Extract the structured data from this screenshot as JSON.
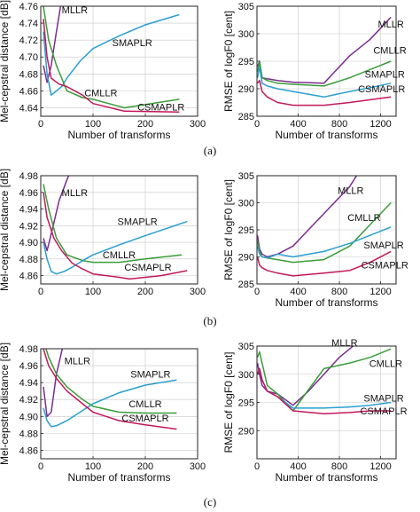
{
  "colors": {
    "MLLR": "#7b2d8e",
    "SMAPLR": "#2a9fd0",
    "CMLLR": "#3a9d3a",
    "CSMAPLR": "#c2185b"
  },
  "captions": [
    "(a)",
    "(b)",
    "(c)"
  ],
  "chart_data": [
    {
      "type": "line",
      "row": 0,
      "xlabel": "Number of transforms",
      "ylabel": "Mel-cepstral distance [dB]",
      "xlim": [
        0,
        300
      ],
      "ylim": [
        4.63,
        4.76
      ],
      "xticks": [
        0,
        100,
        200,
        300
      ],
      "yticks": [
        4.64,
        4.66,
        4.68,
        4.7,
        4.72,
        4.74,
        4.76
      ],
      "grid": true,
      "series": [
        {
          "name": "MLLR",
          "x": [
            5,
            12,
            20,
            30,
            38,
            47
          ],
          "y": [
            4.69,
            4.67,
            4.69,
            4.73,
            4.76,
            4.8
          ]
        },
        {
          "name": "SMAPLR",
          "x": [
            5,
            12,
            20,
            30,
            40,
            50,
            75,
            100,
            150,
            200,
            265
          ],
          "y": [
            4.73,
            4.68,
            4.655,
            4.66,
            4.665,
            4.675,
            4.695,
            4.71,
            4.725,
            4.738,
            4.75
          ]
        },
        {
          "name": "CMLLR",
          "x": [
            5,
            15,
            30,
            50,
            80,
            100,
            160,
            265
          ],
          "y": [
            4.76,
            4.72,
            4.69,
            4.66,
            4.652,
            4.65,
            4.64,
            4.65
          ]
        },
        {
          "name": "CSMAPLR",
          "x": [
            5,
            12,
            20,
            35,
            50,
            80,
            100,
            160,
            265
          ],
          "y": [
            4.745,
            4.7,
            4.675,
            4.668,
            4.665,
            4.655,
            4.645,
            4.636,
            4.635
          ]
        }
      ],
      "labels": [
        {
          "text": "MLLR",
          "x": 65,
          "y": 4.756
        },
        {
          "text": "SMAPLR",
          "x": 175,
          "y": 4.717
        },
        {
          "text": "CMLLR",
          "x": 115,
          "y": 4.658
        },
        {
          "text": "CSMAPLR",
          "x": 230,
          "y": 4.641
        }
      ]
    },
    {
      "type": "line",
      "row": 0,
      "xlabel": "Number of transforms",
      "ylabel": "RMSE of logF0 [cent]",
      "xlim": [
        0,
        1350
      ],
      "ylim": [
        285,
        305
      ],
      "xticks": [
        0,
        400,
        800,
        1200
      ],
      "yticks": [
        285,
        290,
        295,
        300,
        305
      ],
      "grid": true,
      "series": [
        {
          "name": "MLLR",
          "x": [
            5,
            25,
            50,
            100,
            200,
            350,
            650,
            900,
            1100,
            1300
          ],
          "y": [
            294,
            295,
            292,
            291.8,
            291.5,
            291.2,
            291,
            296,
            299,
            303
          ]
        },
        {
          "name": "CMLLR",
          "x": [
            5,
            25,
            50,
            100,
            200,
            350,
            650,
            900,
            1100,
            1300
          ],
          "y": [
            293,
            295,
            292,
            291.5,
            291,
            290.8,
            290.5,
            292,
            293.5,
            295
          ]
        },
        {
          "name": "SMAPLR",
          "x": [
            5,
            25,
            50,
            100,
            200,
            350,
            650,
            900,
            1100,
            1300
          ],
          "y": [
            292,
            294,
            291,
            290.5,
            290,
            289.5,
            288.5,
            289.5,
            290.2,
            291
          ]
        },
        {
          "name": "CSMAPLR",
          "x": [
            5,
            25,
            50,
            100,
            200,
            350,
            650,
            900,
            1100,
            1300
          ],
          "y": [
            291,
            291.5,
            289.5,
            288.5,
            287.5,
            287,
            287,
            287.5,
            288,
            288.5
          ]
        }
      ],
      "labels": [
        {
          "text": "MLLR",
          "x": 1300,
          "y": 301.8
        },
        {
          "text": "CMLLR",
          "x": 1290,
          "y": 297
        },
        {
          "text": "SMAPLR",
          "x": 1240,
          "y": 292.7
        },
        {
          "text": "CSMAPLR",
          "x": 1210,
          "y": 290
        }
      ]
    },
    {
      "type": "line",
      "row": 1,
      "xlabel": "",
      "ylabel": "Mel-cepstral distance [dB]",
      "xlim": [
        0,
        300
      ],
      "ylim": [
        4.85,
        4.98
      ],
      "xticks": [
        0,
        100,
        200,
        300
      ],
      "yticks": [
        4.86,
        4.88,
        4.9,
        4.92,
        4.94,
        4.96,
        4.98
      ],
      "grid": true,
      "series": [
        {
          "name": "MLLR",
          "x": [
            5,
            12,
            20,
            35,
            50,
            60
          ],
          "y": [
            4.905,
            4.89,
            4.91,
            4.95,
            4.975,
            4.99
          ]
        },
        {
          "name": "CMLLR",
          "x": [
            5,
            15,
            30,
            50,
            80,
            100,
            150,
            200,
            270
          ],
          "y": [
            4.97,
            4.94,
            4.905,
            4.885,
            4.878,
            4.876,
            4.876,
            4.88,
            4.885
          ]
        },
        {
          "name": "SMAPLR",
          "x": [
            5,
            12,
            20,
            30,
            45,
            60,
            80,
            100,
            150,
            200,
            280
          ],
          "y": [
            4.9,
            4.88,
            4.865,
            4.862,
            4.865,
            4.87,
            4.878,
            4.885,
            4.897,
            4.908,
            4.925
          ]
        },
        {
          "name": "CSMAPLR",
          "x": [
            5,
            12,
            25,
            40,
            60,
            80,
            100,
            150,
            170,
            230,
            280
          ],
          "y": [
            4.96,
            4.93,
            4.905,
            4.89,
            4.875,
            4.868,
            4.862,
            4.858,
            4.856,
            4.86,
            4.866
          ]
        }
      ],
      "labels": [
        {
          "text": "MLLR",
          "x": 65,
          "y": 4.96
        },
        {
          "text": "SMAPLR",
          "x": 185,
          "y": 4.925
        },
        {
          "text": "CMLLR",
          "x": 150,
          "y": 4.885
        },
        {
          "text": "CSMAPLR",
          "x": 205,
          "y": 4.87
        }
      ]
    },
    {
      "type": "line",
      "row": 1,
      "xlabel": "Number of transforms",
      "ylabel": "RMSE of logF0 [cent]",
      "xlim": [
        0,
        1350
      ],
      "ylim": [
        285,
        305
      ],
      "xticks": [
        0,
        400,
        800,
        1200
      ],
      "yticks": [
        285,
        290,
        295,
        300,
        305
      ],
      "grid": true,
      "series": [
        {
          "name": "MLLR",
          "x": [
            5,
            25,
            50,
            100,
            200,
            350,
            500,
            700,
            900,
            1000
          ],
          "y": [
            294,
            291.5,
            290.5,
            290,
            290.5,
            292,
            295,
            299,
            303,
            306
          ]
        },
        {
          "name": "CMLLR",
          "x": [
            5,
            25,
            50,
            100,
            200,
            350,
            650,
            900,
            1100,
            1300
          ],
          "y": [
            293,
            291,
            290,
            289.8,
            289.5,
            289,
            289.5,
            292,
            296,
            300
          ]
        },
        {
          "name": "SMAPLR",
          "x": [
            5,
            25,
            50,
            100,
            200,
            350,
            650,
            900,
            1100,
            1300
          ],
          "y": [
            292,
            290.5,
            290,
            289.8,
            290.5,
            290,
            291,
            292.5,
            294,
            295.5
          ]
        },
        {
          "name": "CSMAPLR",
          "x": [
            5,
            25,
            50,
            100,
            200,
            350,
            650,
            900,
            1100,
            1300
          ],
          "y": [
            290,
            288.5,
            288,
            287.5,
            287,
            286.5,
            287,
            287.5,
            289,
            291
          ]
        }
      ],
      "labels": [
        {
          "text": "MLLR",
          "x": 910,
          "y": 302.3
        },
        {
          "text": "CMLLR",
          "x": 1040,
          "y": 297.3
        },
        {
          "text": "SMAPLR",
          "x": 1230,
          "y": 292.2
        },
        {
          "text": "CSMAPLR",
          "x": 1240,
          "y": 288.5
        }
      ]
    },
    {
      "type": "line",
      "row": 2,
      "xlabel": "Number of transforms",
      "ylabel": "Mel-cepstral distance [dB]",
      "xlim": [
        0,
        300
      ],
      "ylim": [
        4.85,
        4.98
      ],
      "xticks": [
        0,
        100,
        200,
        300
      ],
      "yticks": [
        4.86,
        4.88,
        4.9,
        4.92,
        4.94,
        4.96,
        4.98
      ],
      "grid": true,
      "series": [
        {
          "name": "MLLR",
          "x": [
            5,
            12,
            20,
            30,
            45
          ],
          "y": [
            4.935,
            4.9,
            4.905,
            4.95,
            4.99
          ]
        },
        {
          "name": "SMAPLR",
          "x": [
            5,
            12,
            20,
            30,
            50,
            75,
            100,
            150,
            200,
            260
          ],
          "y": [
            4.91,
            4.895,
            4.888,
            4.889,
            4.895,
            4.905,
            4.915,
            4.928,
            4.937,
            4.943
          ]
        },
        {
          "name": "CMLLR",
          "x": [
            5,
            15,
            30,
            50,
            80,
            100,
            150,
            200,
            260
          ],
          "y": [
            4.99,
            4.97,
            4.95,
            4.935,
            4.92,
            4.912,
            4.905,
            4.904,
            4.904
          ]
        },
        {
          "name": "CSMAPLR",
          "x": [
            5,
            15,
            30,
            50,
            80,
            100,
            150,
            200,
            260
          ],
          "y": [
            4.98,
            4.96,
            4.945,
            4.93,
            4.915,
            4.905,
            4.895,
            4.89,
            4.885
          ]
        }
      ],
      "labels": [
        {
          "text": "MLLR",
          "x": 70,
          "y": 4.966
        },
        {
          "text": "SMAPLR",
          "x": 210,
          "y": 4.95
        },
        {
          "text": "CMLLR",
          "x": 200,
          "y": 4.915
        },
        {
          "text": "CSMAPLR",
          "x": 200,
          "y": 4.898
        }
      ]
    },
    {
      "type": "line",
      "row": 2,
      "xlabel": "Number of transforms",
      "ylabel": "RMSE of logF0 [cent]",
      "xlim": [
        0,
        1350
      ],
      "ylim": [
        285,
        305
      ],
      "xticks": [
        0,
        400,
        800,
        1200
      ],
      "yticks": [
        290,
        295,
        300,
        305
      ],
      "grid": true,
      "series": [
        {
          "name": "MLLR",
          "x": [
            5,
            25,
            50,
            100,
            200,
            350,
            500,
            650,
            800,
            1000
          ],
          "y": [
            302,
            300,
            298,
            297,
            296.5,
            294.5,
            297,
            300,
            303,
            306
          ]
        },
        {
          "name": "CMLLR",
          "x": [
            5,
            25,
            50,
            100,
            200,
            350,
            650,
            900,
            1100,
            1300
          ],
          "y": [
            303,
            304,
            302,
            298,
            296.5,
            293.5,
            301,
            302,
            303,
            304.5
          ]
        },
        {
          "name": "SMAPLR",
          "x": [
            5,
            25,
            50,
            100,
            200,
            350,
            650,
            900,
            1100,
            1300
          ],
          "y": [
            300,
            301,
            299,
            297,
            296,
            294,
            294,
            294.2,
            294.5,
            295
          ]
        },
        {
          "name": "CSMAPLR",
          "x": [
            5,
            25,
            50,
            100,
            200,
            350,
            650,
            900,
            1100,
            1300
          ],
          "y": [
            300,
            301,
            299,
            297,
            296,
            293.5,
            293,
            293.2,
            293.5,
            293.5
          ]
        }
      ],
      "labels": [
        {
          "text": "MLLR",
          "x": 850,
          "y": 305.6
        },
        {
          "text": "CMLLR",
          "x": 1250,
          "y": 301.9
        },
        {
          "text": "CMLLR",
          "x": 1250,
          "y": 301.9
        },
        {
          "text": "SMAPLR",
          "x": 1230,
          "y": 295.8
        },
        {
          "text": "CSMAPLR",
          "x": 1230,
          "y": 293.5
        }
      ]
    }
  ]
}
